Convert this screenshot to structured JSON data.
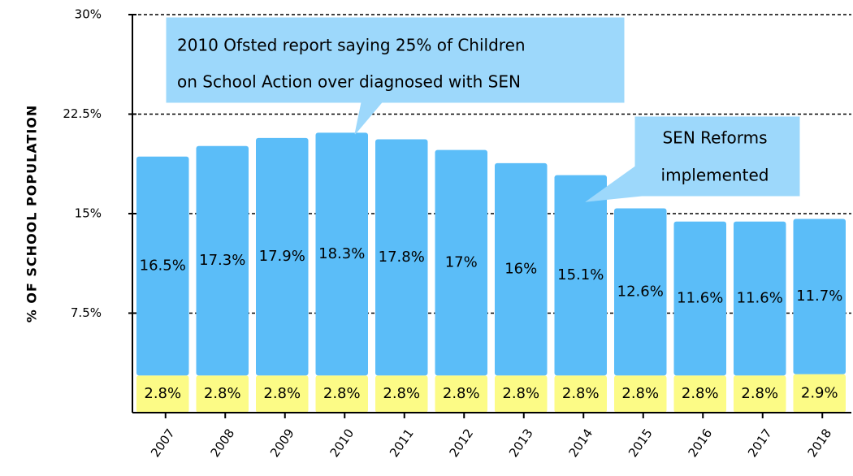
{
  "chart_data": {
    "type": "stacked_bar",
    "y_axis_label": "% OF SCHOOL POPULATION",
    "categories": [
      "2007",
      "2008",
      "2009",
      "2010",
      "2011",
      "2012",
      "2013",
      "2014",
      "2015",
      "2016",
      "2017",
      "2018"
    ],
    "series": [
      {
        "color": "#fcfb86",
        "values": [
          2.8,
          2.8,
          2.8,
          2.8,
          2.8,
          2.8,
          2.8,
          2.8,
          2.8,
          2.8,
          2.8,
          2.9
        ],
        "value_labels": [
          "2.8%",
          "2.8%",
          "2.8%",
          "2.8%",
          "2.8%",
          "2.8%",
          "2.8%",
          "2.8%",
          "2.8%",
          "2.8%",
          "2.8%",
          "2.9%"
        ]
      },
      {
        "color": "#5bbdf8",
        "values": [
          16.5,
          17.3,
          17.9,
          18.3,
          17.8,
          17,
          16,
          15.1,
          12.6,
          11.6,
          11.6,
          11.7
        ],
        "value_labels": [
          "16.5%",
          "17.3%",
          "17.9%",
          "18.3%",
          "17.8%",
          "17%",
          "16%",
          "15.1%",
          "12.6%",
          "11.6%",
          "11.6%",
          "11.7%"
        ]
      }
    ],
    "ylim": [
      0,
      30
    ],
    "yticks": [
      {
        "value": 7.5,
        "label": "7.5%"
      },
      {
        "value": 15,
        "label": "15%"
      },
      {
        "value": 22.5,
        "label": "22.5%"
      },
      {
        "value": 30,
        "label": "30%"
      }
    ],
    "grid": true,
    "annotations": [
      {
        "lines": [
          "2010 Ofsted report saying 25% of Children",
          "on School Action over diagnosed with SEN"
        ]
      },
      {
        "lines": [
          "SEN Reforms",
          "implemented"
        ]
      }
    ]
  }
}
